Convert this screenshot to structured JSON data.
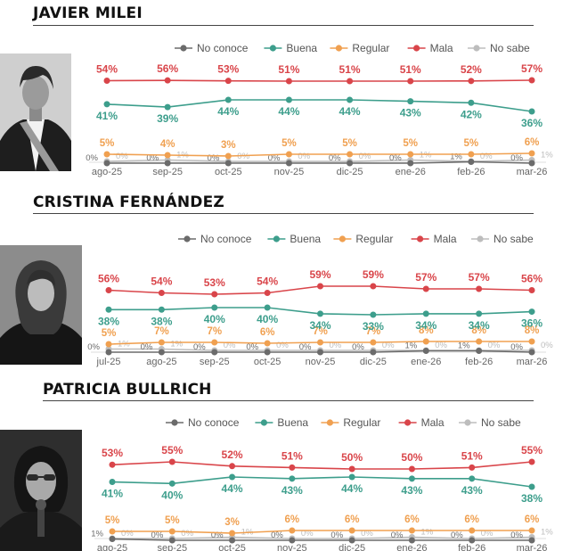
{
  "legend": [
    {
      "key": "no_conoce",
      "label": "No conoce",
      "color": "#6b6b6b"
    },
    {
      "key": "buena",
      "label": "Buena",
      "color": "#3d9e8c"
    },
    {
      "key": "regular",
      "label": "Regular",
      "color": "#f0a050"
    },
    {
      "key": "mala",
      "label": "Mala",
      "color": "#d9454a"
    },
    {
      "key": "no_sabe",
      "label": "No sabe",
      "color": "#bdbdbd"
    }
  ],
  "chart_data": [
    {
      "type": "line",
      "title": "JAVIER MILEI",
      "categories": [
        "ago-25",
        "sep-25",
        "oct-25",
        "nov-25",
        "dic-25",
        "ene-26",
        "feb-26",
        "mar-26"
      ],
      "series": [
        {
          "name": "Mala",
          "values": [
            54,
            56,
            53,
            51,
            51,
            51,
            52,
            57
          ]
        },
        {
          "name": "Buena",
          "values": [
            41,
            39,
            44,
            44,
            44,
            43,
            42,
            36
          ]
        },
        {
          "name": "Regular",
          "values": [
            5,
            4,
            3,
            5,
            5,
            5,
            5,
            6
          ]
        },
        {
          "name": "No conoce",
          "values": [
            0,
            0,
            0,
            0,
            0,
            0,
            1,
            0
          ]
        },
        {
          "name": "No sabe",
          "values": [
            0,
            1,
            0,
            0,
            0,
            1,
            0,
            1
          ]
        }
      ],
      "ylim": [
        0,
        60
      ],
      "legend_position": "top"
    },
    {
      "type": "line",
      "title": "CRISTINA FERNÁNDEZ",
      "categories": [
        "jul-25",
        "ago-25",
        "sep-25",
        "oct-25",
        "nov-25",
        "dic-25",
        "ene-26",
        "feb-26",
        "mar-26"
      ],
      "series": [
        {
          "name": "Mala",
          "values": [
            56,
            54,
            53,
            54,
            59,
            59,
            57,
            57,
            56
          ]
        },
        {
          "name": "Buena",
          "values": [
            38,
            38,
            40,
            40,
            34,
            33,
            34,
            34,
            36
          ]
        },
        {
          "name": "Regular",
          "values": [
            5,
            7,
            7,
            6,
            7,
            7,
            8,
            8,
            8
          ]
        },
        {
          "name": "No conoce",
          "values": [
            0,
            0,
            0,
            0,
            0,
            0,
            1,
            1,
            0
          ]
        },
        {
          "name": "No sabe",
          "values": [
            1,
            1,
            0,
            0,
            0,
            0,
            0,
            0,
            0
          ]
        }
      ],
      "ylim": [
        0,
        60
      ],
      "legend_position": "top"
    },
    {
      "type": "line",
      "title": "PATRICIA BULLRICH",
      "categories": [
        "ago-25",
        "sep-25",
        "oct-25",
        "nov-25",
        "dic-25",
        "ene-26",
        "feb-26",
        "mar-26"
      ],
      "series": [
        {
          "name": "Mala",
          "values": [
            53,
            55,
            52,
            51,
            50,
            50,
            51,
            55
          ]
        },
        {
          "name": "Buena",
          "values": [
            41,
            40,
            44,
            43,
            44,
            43,
            43,
            38
          ]
        },
        {
          "name": "Regular",
          "values": [
            5,
            5,
            3,
            6,
            6,
            6,
            6,
            6
          ]
        },
        {
          "name": "No conoce",
          "values": [
            1,
            0,
            0,
            0,
            0,
            0,
            0,
            0
          ]
        },
        {
          "name": "No sabe",
          "values": [
            0,
            0,
            1,
            0,
            0,
            1,
            0,
            1
          ]
        }
      ],
      "ylim": [
        0,
        60
      ],
      "legend_position": "top"
    }
  ]
}
